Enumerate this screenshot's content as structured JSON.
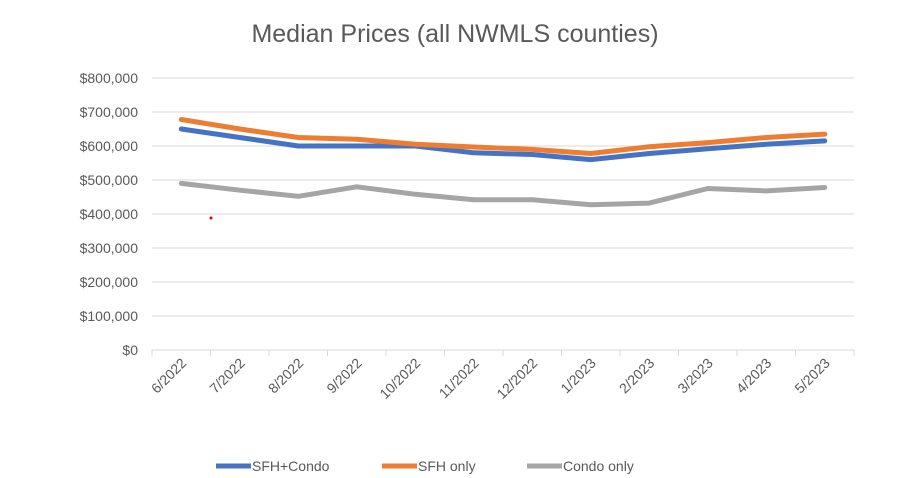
{
  "chart_data": {
    "type": "line",
    "title": "Median Prices (all NWMLS counties)",
    "xlabel": "",
    "ylabel": "",
    "categories": [
      "6/2022",
      "7/2022",
      "8/2022",
      "9/2022",
      "10/2022",
      "11/2022",
      "12/2022",
      "1/2023",
      "2/2023",
      "3/2023",
      "4/2023",
      "5/2023"
    ],
    "ylim": [
      0,
      800000
    ],
    "yticks": [
      0,
      100000,
      200000,
      300000,
      400000,
      500000,
      600000,
      700000,
      800000
    ],
    "ytick_labels": [
      "$0",
      "$100,000",
      "$200,000",
      "$300,000",
      "$400,000",
      "$500,000",
      "$600,000",
      "$700,000",
      "$800,000"
    ],
    "grid": true,
    "legend_position": "bottom",
    "series": [
      {
        "name": "SFH+Condo",
        "color": "#4472C4",
        "values": [
          650000,
          625000,
          600000,
          600000,
          600000,
          580000,
          575000,
          560000,
          578000,
          592000,
          605000,
          615000
        ]
      },
      {
        "name": "SFH only",
        "color": "#ED7D31",
        "values": [
          678000,
          650000,
          625000,
          620000,
          605000,
          597000,
          590000,
          578000,
          598000,
          610000,
          625000,
          635000
        ]
      },
      {
        "name": "Condo only",
        "color": "#A5A5A5",
        "values": [
          490000,
          470000,
          452000,
          480000,
          458000,
          442000,
          442000,
          427000,
          432000,
          475000,
          468000,
          478000
        ]
      }
    ]
  }
}
